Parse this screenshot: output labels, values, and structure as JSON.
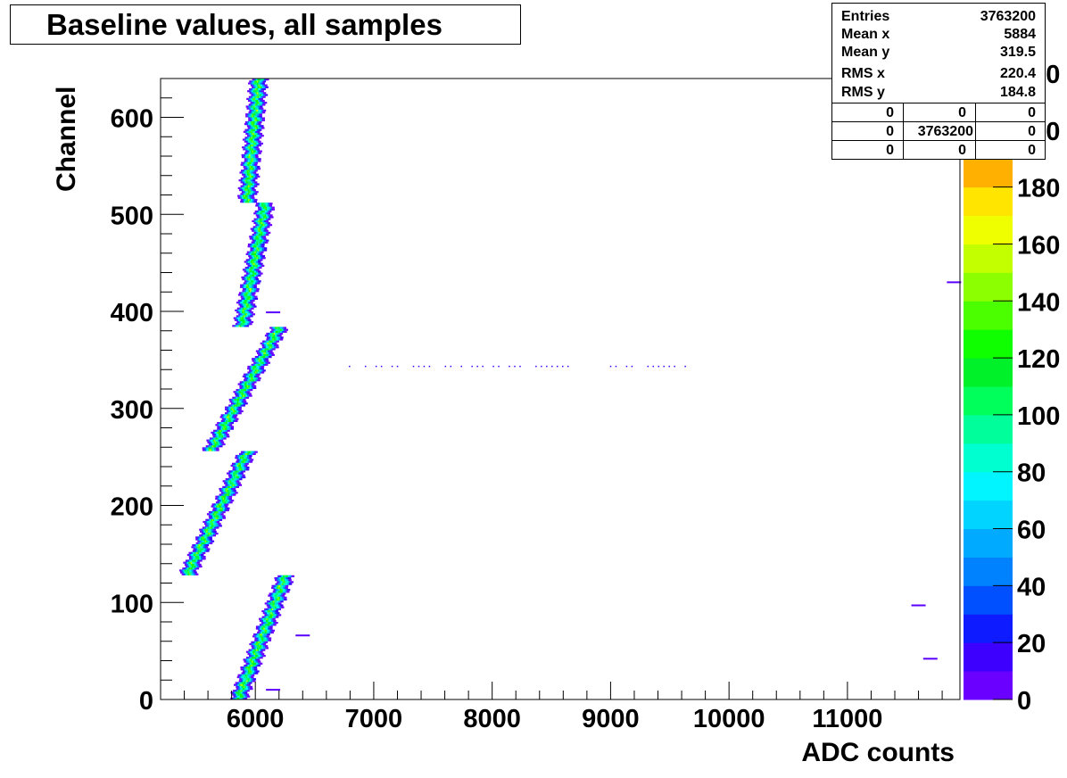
{
  "chart_data": {
    "type": "heatmap",
    "title": "Baseline values, all samples",
    "xlabel": "ADC counts",
    "ylabel": "Channel",
    "xlim": [
      5200,
      11950
    ],
    "ylim": [
      0,
      640
    ],
    "x_ticks": [
      6000,
      7000,
      8000,
      9000,
      10000,
      11000
    ],
    "x_tick_labels": [
      "6000",
      "7000",
      "8000",
      "9000",
      "10000",
      "11000"
    ],
    "y_ticks": [
      0,
      100,
      200,
      300,
      400,
      500,
      600
    ],
    "y_tick_labels": [
      "0",
      "100",
      "200",
      "300",
      "400",
      "500",
      "600"
    ],
    "z_ticks": [
      0,
      20,
      40,
      60,
      80,
      100,
      120,
      140,
      160,
      180,
      200,
      220
    ],
    "z_tick_labels": [
      "0",
      "20",
      "40",
      "60",
      "80",
      "100",
      "120",
      "140",
      "160",
      "180",
      "200",
      "220"
    ],
    "zlim": [
      0,
      220
    ],
    "palette": [
      "#6a00ff",
      "#3d00ff",
      "#0f1bff",
      "#0050ff",
      "#0082ff",
      "#00aaff",
      "#00d4ff",
      "#00f5ff",
      "#00ffd0",
      "#00ff9a",
      "#00ff5a",
      "#00f02a",
      "#10ff00",
      "#4cff00",
      "#8cff00",
      "#c4ff00",
      "#f0ff00",
      "#ffe500",
      "#ffb000",
      "#ff8000",
      "#ff5500",
      "#ff2a00"
    ],
    "bands": [
      {
        "ch0": 0,
        "ch1": 128,
        "x0": 5850,
        "x1": 6250
      },
      {
        "ch0": 128,
        "ch1": 256,
        "x0": 5420,
        "x1": 5930
      },
      {
        "ch0": 256,
        "ch1": 384,
        "x0": 5620,
        "x1": 6200
      },
      {
        "ch0": 384,
        "ch1": 512,
        "x0": 5880,
        "x1": 6080
      },
      {
        "ch0": 512,
        "ch1": 640,
        "x0": 5920,
        "x1": 6020
      }
    ],
    "outliers": [
      {
        "x": 11600,
        "y": 97
      },
      {
        "x": 11700,
        "y": 42
      },
      {
        "x": 11900,
        "y": 430
      },
      {
        "x": 6400,
        "y": 66
      },
      {
        "x": 6150,
        "y": 10
      },
      {
        "x": 6150,
        "y": 399
      }
    ],
    "sparse_row": {
      "y": 344,
      "x0": 6700,
      "x1": 9700
    }
  },
  "stats": {
    "rows": [
      {
        "key": "Entries",
        "value": "3763200"
      },
      {
        "key": "Mean x",
        "value": "5884"
      },
      {
        "key": "Mean y",
        "value": "319.5"
      },
      {
        "key": "RMS x",
        "value": "220.4"
      },
      {
        "key": "RMS y",
        "value": "184.8"
      }
    ],
    "grid": [
      [
        "0",
        "0",
        "0"
      ],
      [
        "0",
        "3763200",
        "0"
      ],
      [
        "0",
        "0",
        "0"
      ]
    ]
  }
}
